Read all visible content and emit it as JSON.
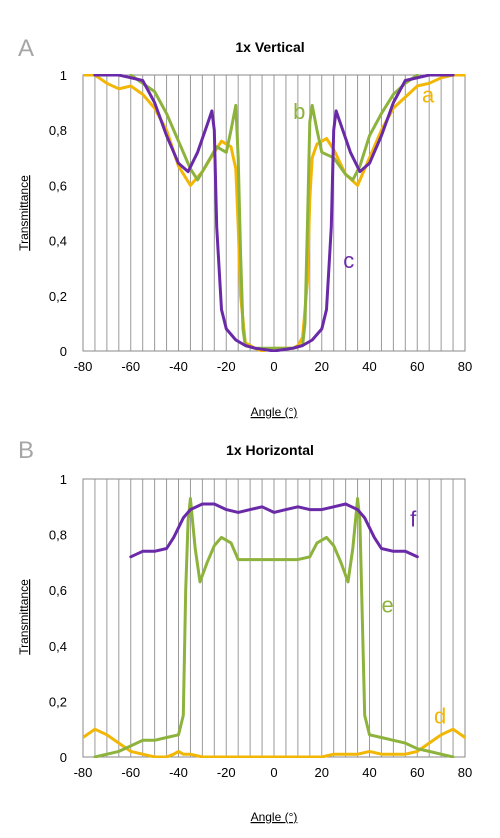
{
  "chart_data": [
    {
      "panel_label": "A",
      "type": "line",
      "title": "1x Vertical",
      "xlabel": "Angle (°)",
      "ylabel": "Transmittance",
      "xlim": [
        -80,
        80
      ],
      "ylim": [
        0,
        1
      ],
      "x_ticks": [
        "-80",
        "-60",
        "-40",
        "-20",
        "0",
        "20",
        "40",
        "60",
        "80"
      ],
      "y_ticks": [
        "0",
        "0,2",
        "0,4",
        "0,6",
        "0,8",
        "1"
      ],
      "grid": "vertical lines every 5",
      "series": [
        {
          "name": "a",
          "color": "#f2b705",
          "label_pos": [
            62,
            0.9
          ],
          "points": [
            [
              -85,
              1
            ],
            [
              -80,
              1
            ],
            [
              -75,
              1
            ],
            [
              -70,
              0.97
            ],
            [
              -65,
              0.95
            ],
            [
              -60,
              0.96
            ],
            [
              -55,
              0.93
            ],
            [
              -50,
              0.88
            ],
            [
              -45,
              0.8
            ],
            [
              -40,
              0.67
            ],
            [
              -35,
              0.6
            ],
            [
              -30,
              0.65
            ],
            [
              -25,
              0.72
            ],
            [
              -22,
              0.76
            ],
            [
              -18,
              0.74
            ],
            [
              -16,
              0.66
            ],
            [
              -15,
              0.45
            ],
            [
              -14,
              0.2
            ],
            [
              -12,
              0.03
            ],
            [
              -8,
              0.01
            ],
            [
              -5,
              0
            ],
            [
              0,
              0.01
            ],
            [
              5,
              0.01
            ],
            [
              8,
              0.01
            ],
            [
              10,
              0.02
            ],
            [
              12,
              0.05
            ],
            [
              14,
              0.25
            ],
            [
              15,
              0.55
            ],
            [
              16,
              0.7
            ],
            [
              18,
              0.75
            ],
            [
              22,
              0.77
            ],
            [
              25,
              0.73
            ],
            [
              30,
              0.64
            ],
            [
              35,
              0.6
            ],
            [
              40,
              0.7
            ],
            [
              45,
              0.8
            ],
            [
              50,
              0.88
            ],
            [
              55,
              0.92
            ],
            [
              60,
              0.96
            ],
            [
              65,
              0.97
            ],
            [
              70,
              0.99
            ],
            [
              75,
              1
            ],
            [
              80,
              1
            ],
            [
              85,
              0.97
            ]
          ]
        },
        {
          "name": "b",
          "color": "#8db33d",
          "label_pos": [
            8,
            0.84
          ],
          "points": [
            [
              -60,
              1
            ],
            [
              -50,
              0.94
            ],
            [
              -45,
              0.86
            ],
            [
              -40,
              0.76
            ],
            [
              -35,
              0.66
            ],
            [
              -32,
              0.62
            ],
            [
              -28,
              0.68
            ],
            [
              -24,
              0.74
            ],
            [
              -20,
              0.72
            ],
            [
              -18,
              0.8
            ],
            [
              -16,
              0.89
            ],
            [
              -15,
              0.7
            ],
            [
              -14,
              0.35
            ],
            [
              -13,
              0.08
            ],
            [
              -12,
              0.02
            ],
            [
              -8,
              0.01
            ],
            [
              0,
              0.01
            ],
            [
              8,
              0.01
            ],
            [
              12,
              0.02
            ],
            [
              13,
              0.1
            ],
            [
              14,
              0.45
            ],
            [
              15,
              0.83
            ],
            [
              16,
              0.89
            ],
            [
              18,
              0.8
            ],
            [
              20,
              0.72
            ],
            [
              25,
              0.7
            ],
            [
              30,
              0.64
            ],
            [
              33,
              0.62
            ],
            [
              36,
              0.67
            ],
            [
              40,
              0.78
            ],
            [
              45,
              0.86
            ],
            [
              50,
              0.93
            ],
            [
              55,
              0.97
            ],
            [
              60,
              1
            ]
          ]
        },
        {
          "name": "c",
          "color": "#6a2aa8",
          "label_pos": [
            29,
            0.3
          ],
          "points": [
            [
              -75,
              1
            ],
            [
              -65,
              1
            ],
            [
              -55,
              0.98
            ],
            [
              -50,
              0.9
            ],
            [
              -45,
              0.78
            ],
            [
              -40,
              0.68
            ],
            [
              -36,
              0.65
            ],
            [
              -32,
              0.72
            ],
            [
              -28,
              0.82
            ],
            [
              -26,
              0.87
            ],
            [
              -25,
              0.8
            ],
            [
              -24,
              0.45
            ],
            [
              -22,
              0.15
            ],
            [
              -20,
              0.08
            ],
            [
              -16,
              0.04
            ],
            [
              -12,
              0.02
            ],
            [
              -8,
              0.01
            ],
            [
              0,
              0
            ],
            [
              8,
              0.01
            ],
            [
              12,
              0.02
            ],
            [
              16,
              0.04
            ],
            [
              20,
              0.08
            ],
            [
              22,
              0.15
            ],
            [
              24,
              0.45
            ],
            [
              25,
              0.8
            ],
            [
              26,
              0.87
            ],
            [
              28,
              0.82
            ],
            [
              32,
              0.72
            ],
            [
              36,
              0.65
            ],
            [
              40,
              0.68
            ],
            [
              45,
              0.78
            ],
            [
              50,
              0.9
            ],
            [
              55,
              0.98
            ],
            [
              65,
              1
            ],
            [
              75,
              1
            ]
          ]
        }
      ]
    },
    {
      "panel_label": "B",
      "type": "line",
      "title": "1x Horizontal",
      "xlabel": "Angle (°)",
      "ylabel": "Transmittance",
      "xlim": [
        -80,
        80
      ],
      "ylim": [
        0,
        1
      ],
      "x_ticks": [
        "-80",
        "-60",
        "-40",
        "-20",
        "0",
        "20",
        "40",
        "60",
        "80"
      ],
      "y_ticks": [
        "0",
        "0,2",
        "0,4",
        "0,6",
        "0,8",
        "1"
      ],
      "grid": "vertical lines every 5",
      "series": [
        {
          "name": "d",
          "color": "#f2b705",
          "label_pos": [
            67,
            0.12
          ],
          "points": [
            [
              -80,
              0.07
            ],
            [
              -75,
              0.1
            ],
            [
              -70,
              0.08
            ],
            [
              -65,
              0.05
            ],
            [
              -60,
              0.02
            ],
            [
              -55,
              0.01
            ],
            [
              -50,
              0
            ],
            [
              -45,
              0
            ],
            [
              -42,
              0.01
            ],
            [
              -40,
              0.02
            ],
            [
              -38,
              0.01
            ],
            [
              -35,
              0.01
            ],
            [
              -30,
              0
            ],
            [
              -20,
              0
            ],
            [
              -10,
              0
            ],
            [
              0,
              0
            ],
            [
              10,
              0
            ],
            [
              20,
              0
            ],
            [
              25,
              0.01
            ],
            [
              30,
              0.01
            ],
            [
              35,
              0.01
            ],
            [
              40,
              0.02
            ],
            [
              45,
              0.01
            ],
            [
              50,
              0.01
            ],
            [
              55,
              0.01
            ],
            [
              60,
              0.02
            ],
            [
              65,
              0.05
            ],
            [
              70,
              0.08
            ],
            [
              75,
              0.1
            ],
            [
              80,
              0.07
            ]
          ]
        },
        {
          "name": "e",
          "color": "#8db33d",
          "label_pos": [
            45,
            0.52
          ],
          "points": [
            [
              -75,
              0
            ],
            [
              -70,
              0.01
            ],
            [
              -65,
              0.02
            ],
            [
              -60,
              0.04
            ],
            [
              -55,
              0.06
            ],
            [
              -50,
              0.06
            ],
            [
              -45,
              0.07
            ],
            [
              -40,
              0.08
            ],
            [
              -38,
              0.15
            ],
            [
              -37,
              0.6
            ],
            [
              -36,
              0.85
            ],
            [
              -35,
              0.93
            ],
            [
              -33,
              0.75
            ],
            [
              -31,
              0.63
            ],
            [
              -28,
              0.7
            ],
            [
              -25,
              0.76
            ],
            [
              -22,
              0.79
            ],
            [
              -18,
              0.77
            ],
            [
              -15,
              0.71
            ],
            [
              -10,
              0.71
            ],
            [
              0,
              0.71
            ],
            [
              10,
              0.71
            ],
            [
              15,
              0.72
            ],
            [
              18,
              0.77
            ],
            [
              22,
              0.79
            ],
            [
              25,
              0.76
            ],
            [
              28,
              0.7
            ],
            [
              31,
              0.63
            ],
            [
              33,
              0.75
            ],
            [
              35,
              0.93
            ],
            [
              36,
              0.85
            ],
            [
              37,
              0.5
            ],
            [
              38,
              0.15
            ],
            [
              40,
              0.08
            ],
            [
              45,
              0.07
            ],
            [
              50,
              0.06
            ],
            [
              55,
              0.05
            ],
            [
              60,
              0.03
            ],
            [
              65,
              0.02
            ],
            [
              70,
              0.01
            ],
            [
              75,
              0
            ]
          ]
        },
        {
          "name": "f",
          "color": "#6a2aa8",
          "label_pos": [
            57,
            0.83
          ],
          "points": [
            [
              -60,
              0.72
            ],
            [
              -55,
              0.74
            ],
            [
              -50,
              0.74
            ],
            [
              -45,
              0.75
            ],
            [
              -42,
              0.79
            ],
            [
              -38,
              0.86
            ],
            [
              -35,
              0.89
            ],
            [
              -30,
              0.91
            ],
            [
              -25,
              0.91
            ],
            [
              -20,
              0.89
            ],
            [
              -15,
              0.88
            ],
            [
              -10,
              0.89
            ],
            [
              -5,
              0.9
            ],
            [
              0,
              0.88
            ],
            [
              5,
              0.89
            ],
            [
              10,
              0.9
            ],
            [
              15,
              0.89
            ],
            [
              20,
              0.89
            ],
            [
              25,
              0.9
            ],
            [
              30,
              0.91
            ],
            [
              35,
              0.89
            ],
            [
              38,
              0.86
            ],
            [
              42,
              0.79
            ],
            [
              45,
              0.75
            ],
            [
              50,
              0.74
            ],
            [
              55,
              0.74
            ],
            [
              60,
              0.72
            ]
          ]
        }
      ]
    }
  ]
}
